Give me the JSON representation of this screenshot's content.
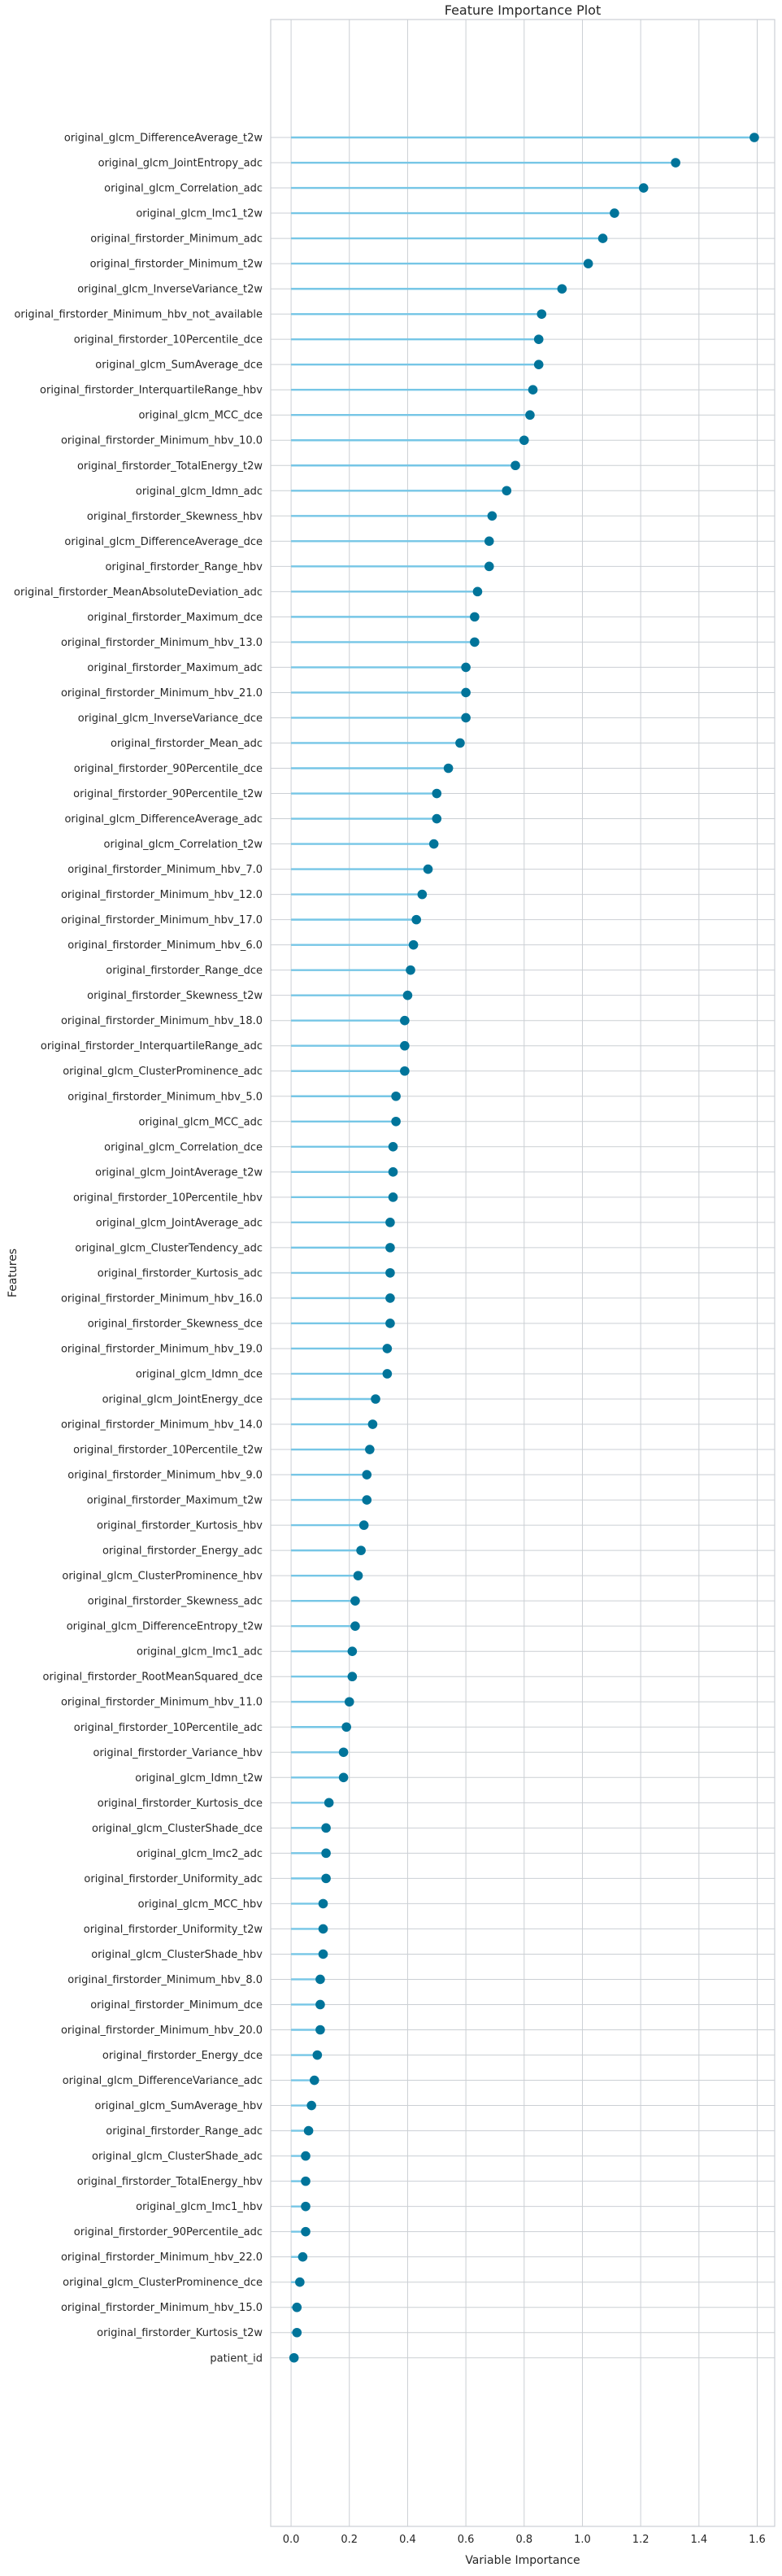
{
  "chart_data": {
    "type": "lollipop",
    "title": "Feature Importance Plot",
    "xlabel": "Variable Importance",
    "ylabel": "Features",
    "xlim": [
      -0.07,
      1.66
    ],
    "xticks": [
      "0.0",
      "0.2",
      "0.4",
      "0.6",
      "0.8",
      "1.0",
      "1.2",
      "1.4",
      "1.6"
    ],
    "grid": true,
    "colors": {
      "stem": "#76c6e6",
      "marker": "#00749a",
      "grid": "#cbcfd4",
      "frame": "#cbcfd4"
    },
    "categories": [
      "original_glcm_DifferenceAverage_t2w",
      "original_glcm_JointEntropy_adc",
      "original_glcm_Correlation_adc",
      "original_glcm_Imc1_t2w",
      "original_firstorder_Minimum_adc",
      "original_firstorder_Minimum_t2w",
      "original_glcm_InverseVariance_t2w",
      "original_firstorder_Minimum_hbv_not_available",
      "original_firstorder_10Percentile_dce",
      "original_glcm_SumAverage_dce",
      "original_firstorder_InterquartileRange_hbv",
      "original_glcm_MCC_dce",
      "original_firstorder_Minimum_hbv_10.0",
      "original_firstorder_TotalEnergy_t2w",
      "original_glcm_Idmn_adc",
      "original_firstorder_Skewness_hbv",
      "original_glcm_DifferenceAverage_dce",
      "original_firstorder_Range_hbv",
      "original_firstorder_MeanAbsoluteDeviation_adc",
      "original_firstorder_Maximum_dce",
      "original_firstorder_Minimum_hbv_13.0",
      "original_firstorder_Maximum_adc",
      "original_firstorder_Minimum_hbv_21.0",
      "original_glcm_InverseVariance_dce",
      "original_firstorder_Mean_adc",
      "original_firstorder_90Percentile_dce",
      "original_firstorder_90Percentile_t2w",
      "original_glcm_DifferenceAverage_adc",
      "original_glcm_Correlation_t2w",
      "original_firstorder_Minimum_hbv_7.0",
      "original_firstorder_Minimum_hbv_12.0",
      "original_firstorder_Minimum_hbv_17.0",
      "original_firstorder_Minimum_hbv_6.0",
      "original_firstorder_Range_dce",
      "original_firstorder_Skewness_t2w",
      "original_firstorder_Minimum_hbv_18.0",
      "original_firstorder_InterquartileRange_adc",
      "original_glcm_ClusterProminence_adc",
      "original_firstorder_Minimum_hbv_5.0",
      "original_glcm_MCC_adc",
      "original_glcm_Correlation_dce",
      "original_glcm_JointAverage_t2w",
      "original_firstorder_10Percentile_hbv",
      "original_glcm_JointAverage_adc",
      "original_glcm_ClusterTendency_adc",
      "original_firstorder_Kurtosis_adc",
      "original_firstorder_Minimum_hbv_16.0",
      "original_firstorder_Skewness_dce",
      "original_firstorder_Minimum_hbv_19.0",
      "original_glcm_Idmn_dce",
      "original_glcm_JointEnergy_dce",
      "original_firstorder_Minimum_hbv_14.0",
      "original_firstorder_10Percentile_t2w",
      "original_firstorder_Minimum_hbv_9.0",
      "original_firstorder_Maximum_t2w",
      "original_firstorder_Kurtosis_hbv",
      "original_firstorder_Energy_adc",
      "original_glcm_ClusterProminence_hbv",
      "original_firstorder_Skewness_adc",
      "original_glcm_DifferenceEntropy_t2w",
      "original_glcm_Imc1_adc",
      "original_firstorder_RootMeanSquared_dce",
      "original_firstorder_Minimum_hbv_11.0",
      "original_firstorder_10Percentile_adc",
      "original_firstorder_Variance_hbv",
      "original_glcm_Idmn_t2w",
      "original_firstorder_Kurtosis_dce",
      "original_glcm_ClusterShade_dce",
      "original_glcm_Imc2_adc",
      "original_firstorder_Uniformity_adc",
      "original_glcm_MCC_hbv",
      "original_firstorder_Uniformity_t2w",
      "original_glcm_ClusterShade_hbv",
      "original_firstorder_Minimum_hbv_8.0",
      "original_firstorder_Minimum_dce",
      "original_firstorder_Minimum_hbv_20.0",
      "original_firstorder_Energy_dce",
      "original_glcm_DifferenceVariance_adc",
      "original_glcm_SumAverage_hbv",
      "original_firstorder_Range_adc",
      "original_glcm_ClusterShade_adc",
      "original_firstorder_TotalEnergy_hbv",
      "original_glcm_Imc1_hbv",
      "original_firstorder_90Percentile_adc",
      "original_firstorder_Minimum_hbv_22.0",
      "original_glcm_ClusterProminence_dce",
      "original_firstorder_Minimum_hbv_15.0",
      "original_firstorder_Kurtosis_t2w",
      "patient_id"
    ],
    "values": [
      1.59,
      1.32,
      1.21,
      1.11,
      1.07,
      1.02,
      0.93,
      0.86,
      0.85,
      0.85,
      0.83,
      0.82,
      0.8,
      0.77,
      0.74,
      0.69,
      0.68,
      0.68,
      0.64,
      0.63,
      0.63,
      0.6,
      0.6,
      0.6,
      0.58,
      0.54,
      0.5,
      0.5,
      0.49,
      0.47,
      0.45,
      0.43,
      0.42,
      0.41,
      0.4,
      0.39,
      0.39,
      0.39,
      0.36,
      0.36,
      0.35,
      0.35,
      0.35,
      0.34,
      0.34,
      0.34,
      0.34,
      0.34,
      0.33,
      0.33,
      0.29,
      0.28,
      0.27,
      0.26,
      0.26,
      0.25,
      0.24,
      0.23,
      0.22,
      0.22,
      0.21,
      0.21,
      0.2,
      0.19,
      0.18,
      0.18,
      0.13,
      0.12,
      0.12,
      0.12,
      0.11,
      0.11,
      0.11,
      0.1,
      0.1,
      0.1,
      0.09,
      0.08,
      0.07,
      0.06,
      0.05,
      0.05,
      0.05,
      0.05,
      0.04,
      0.03,
      0.02,
      0.02,
      0.01
    ]
  }
}
